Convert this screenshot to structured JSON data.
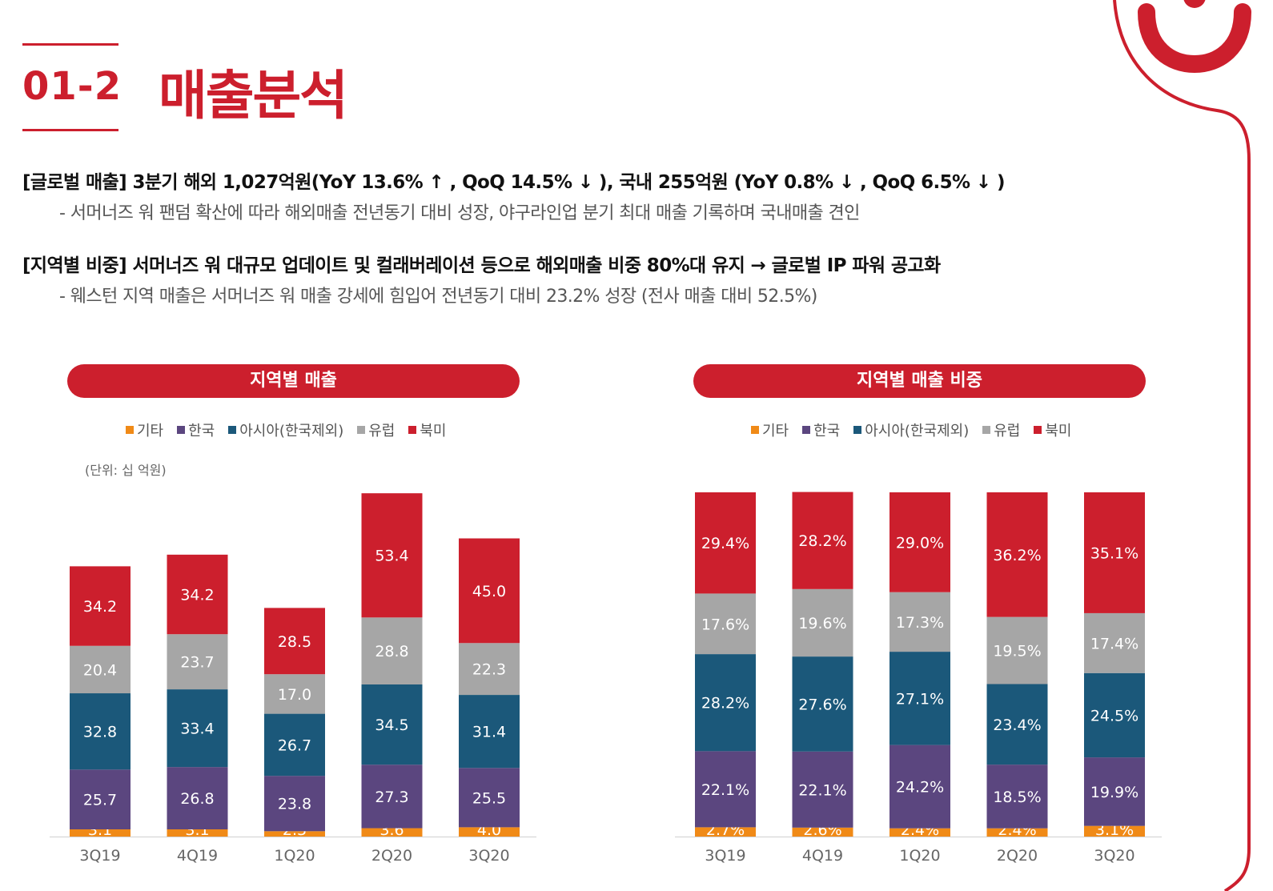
{
  "section": {
    "number": "01-2",
    "title": "매출분석"
  },
  "paragraphs": [
    {
      "head": "[글로벌 매출] 3분기 해외 1,027억원(YoY 13.6% ↑ , QoQ 14.5% ↓ ), 국내 255억원 (YoY 0.8% ↓ , QoQ 6.5% ↓ )",
      "sub": "-  서머너즈 워 팬덤 확산에 따라 해외매출 전년동기 대비 성장, 야구라인업 분기 최대 매출 기록하며 국내매출 견인"
    },
    {
      "head": "[지역별 비중] 서머너즈 워 대규모 업데이트 및 컬래버레이션  등으로 해외매출 비중 80%대 유지 → 글로벌 IP 파워 공고화",
      "sub": "-  웨스턴 지역 매출은 서머너즈 워 매출 강세에 힘입어 전년동기 대비 23.2% 성장 (전사 매출 대비 52.5%)"
    }
  ],
  "colors": {
    "기타": "#f08a17",
    "한국": "#5b467f",
    "아시아": "#1b587a",
    "유럽": "#a6a6a6",
    "북미": "#cc1f2d",
    "brand": "#cc1f2d"
  },
  "legend": [
    "기타",
    "한국",
    "아시아(한국제외)",
    "유럽",
    "북미"
  ],
  "chart_data": [
    {
      "type": "bar",
      "stacked": true,
      "title": "지역별 매출",
      "unit_note": "(단위: 십 억원)",
      "categories": [
        "3Q19",
        "4Q19",
        "1Q20",
        "2Q20",
        "3Q20"
      ],
      "series": [
        {
          "name": "기타",
          "values": [
            3.1,
            3.1,
            2.3,
            3.6,
            4.0
          ],
          "labels": [
            "3.1",
            "3.1",
            "2.3",
            "3.6",
            "4.0"
          ]
        },
        {
          "name": "한국",
          "values": [
            25.7,
            26.8,
            23.8,
            27.3,
            25.5
          ],
          "labels": [
            "25.7",
            "26.8",
            "23.8",
            "27.3",
            "25.5"
          ]
        },
        {
          "name": "아시아(한국제외)",
          "values": [
            32.8,
            33.4,
            26.7,
            34.5,
            31.4
          ],
          "labels": [
            "32.8",
            "33.4",
            "26.7",
            "34.5",
            "31.4"
          ]
        },
        {
          "name": "유럽",
          "values": [
            20.4,
            23.7,
            17.0,
            28.8,
            22.3
          ],
          "labels": [
            "20.4",
            "23.7",
            "17.0",
            "28.8",
            "22.3"
          ]
        },
        {
          "name": "북미",
          "values": [
            34.2,
            34.2,
            28.5,
            53.4,
            45.0
          ],
          "labels": [
            "34.2",
            "34.2",
            "28.5",
            "53.4",
            "45.0"
          ]
        }
      ],
      "ylim": [
        0,
        148
      ],
      "grid": false,
      "legend_position": "top"
    },
    {
      "type": "bar",
      "stacked": true,
      "title": "지역별 매출 비중",
      "categories": [
        "3Q19",
        "4Q19",
        "1Q20",
        "2Q20",
        "3Q20"
      ],
      "series": [
        {
          "name": "기타",
          "values": [
            2.7,
            2.6,
            2.4,
            2.4,
            3.1
          ],
          "labels": [
            "2.7%",
            "2.6%",
            "2.4%",
            "2.4%",
            "3.1%"
          ]
        },
        {
          "name": "한국",
          "values": [
            22.1,
            22.1,
            24.2,
            18.5,
            19.9
          ],
          "labels": [
            "22.1%",
            "22.1%",
            "24.2%",
            "18.5%",
            "19.9%"
          ]
        },
        {
          "name": "아시아(한국제외)",
          "values": [
            28.2,
            27.6,
            27.1,
            23.4,
            24.5
          ],
          "labels": [
            "28.2%",
            "27.6%",
            "27.1%",
            "23.4%",
            "24.5%"
          ]
        },
        {
          "name": "유럽",
          "values": [
            17.6,
            19.6,
            17.3,
            19.5,
            17.4
          ],
          "labels": [
            "17.6%",
            "19.6%",
            "17.3%",
            "19.5%",
            "17.4%"
          ]
        },
        {
          "name": "북미",
          "values": [
            29.4,
            28.2,
            29.0,
            36.2,
            35.1
          ],
          "labels": [
            "29.4%",
            "28.2%",
            "29.0%",
            "36.2%",
            "35.1%"
          ]
        }
      ],
      "ylim": [
        0,
        100
      ],
      "grid": false,
      "legend_position": "top"
    }
  ]
}
